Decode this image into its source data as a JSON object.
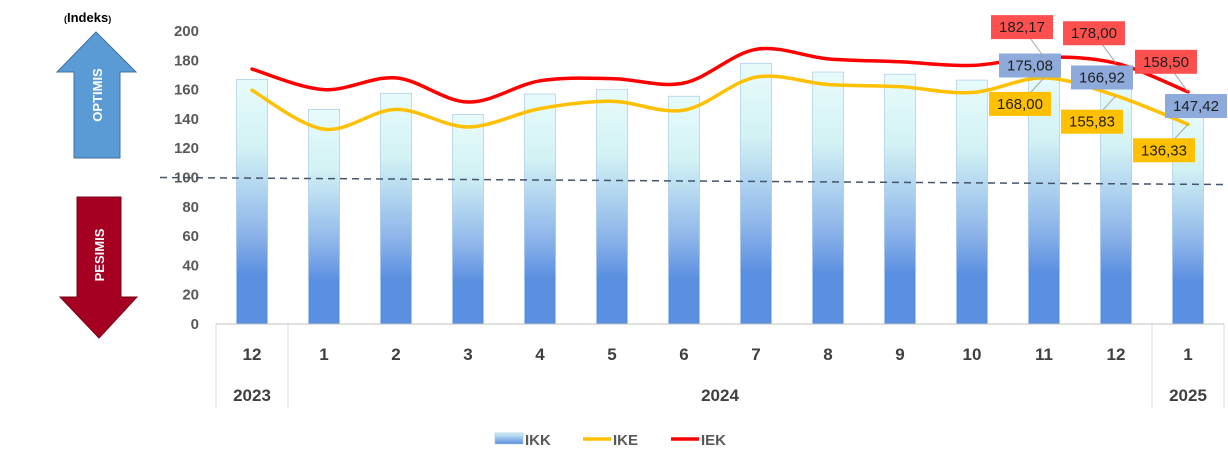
{
  "chart_data": {
    "type": "bar+line",
    "unit_label": "Indeks",
    "optimism_label": "OPTIMIS",
    "pessimism_label": "PESIMIS",
    "ylim": [
      0,
      200
    ],
    "yticks": [
      0,
      20,
      40,
      60,
      80,
      100,
      120,
      140,
      160,
      180,
      200
    ],
    "threshold": 100,
    "categories": [
      "12",
      "1",
      "2",
      "3",
      "4",
      "5",
      "6",
      "7",
      "8",
      "9",
      "10",
      "11",
      "12",
      "1"
    ],
    "year_groups": [
      {
        "label": "2023",
        "count": 1
      },
      {
        "label": "2024",
        "count": 12
      },
      {
        "label": "2025",
        "count": 1
      }
    ],
    "series": [
      {
        "name": "IKK",
        "kind": "bar",
        "color": "#5b8fe0",
        "values": [
          167.0,
          146.5,
          157.5,
          143.0,
          157.0,
          160.0,
          155.5,
          178.0,
          172.0,
          170.5,
          166.5,
          175.08,
          166.92,
          147.42
        ]
      },
      {
        "name": "IKE",
        "kind": "line",
        "color": "#ffc000",
        "values": [
          159.5,
          133.0,
          146.5,
          134.5,
          147.0,
          152.0,
          146.0,
          168.5,
          163.5,
          162.0,
          158.0,
          168.0,
          155.83,
          136.33
        ]
      },
      {
        "name": "IEK",
        "kind": "line",
        "color": "#ff0000",
        "values": [
          174.0,
          160.0,
          168.0,
          151.5,
          166.0,
          167.5,
          164.5,
          187.5,
          181.0,
          179.0,
          176.5,
          182.17,
          178.0,
          158.5
        ]
      }
    ],
    "data_labels": [
      {
        "series": "IKK",
        "index": 11,
        "text": "175,08",
        "color": "#8eaadb"
      },
      {
        "series": "IKK",
        "index": 12,
        "text": "166,92",
        "color": "#8eaadb"
      },
      {
        "series": "IKK",
        "index": 13,
        "text": "147,42",
        "color": "#8eaadb"
      },
      {
        "series": "IKE",
        "index": 11,
        "text": "168,00",
        "color": "#ffc000"
      },
      {
        "series": "IKE",
        "index": 12,
        "text": "155,83",
        "color": "#ffc000"
      },
      {
        "series": "IKE",
        "index": 13,
        "text": "136,33",
        "color": "#ffc000"
      },
      {
        "series": "IEK",
        "index": 11,
        "text": "182,17",
        "color": "#ff5050"
      },
      {
        "series": "IEK",
        "index": 12,
        "text": "178,00",
        "color": "#ff5050"
      },
      {
        "series": "IEK",
        "index": 13,
        "text": "158,50",
        "color": "#ff5050"
      }
    ],
    "legend": [
      "IKK",
      "IKE",
      "IEK"
    ],
    "legend_position": "bottom"
  }
}
